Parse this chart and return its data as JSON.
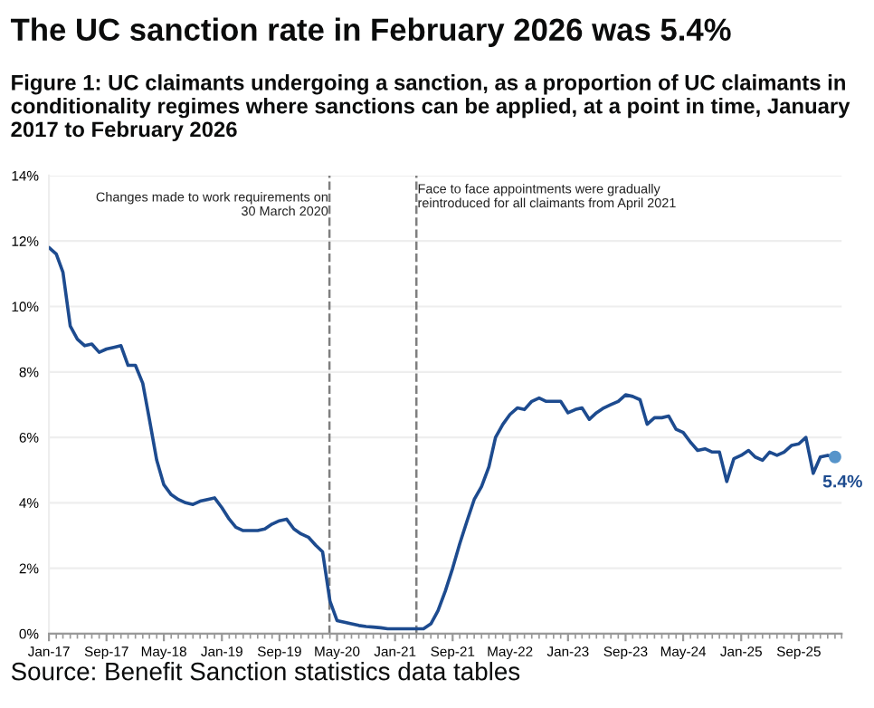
{
  "chart_data": {
    "type": "line",
    "title": "The UC sanction rate in February 2026 was 5.4%",
    "subtitle": "Figure 1: UC claimants undergoing a sanction, as a proportion of UC claimants in conditionality regimes where sanctions can be applied, at a point in time, January 2017 to February 2026",
    "x": [
      "2017-01",
      "2017-02",
      "2017-03",
      "2017-04",
      "2017-05",
      "2017-06",
      "2017-07",
      "2017-08",
      "2017-09",
      "2017-10",
      "2017-11",
      "2017-12",
      "2018-01",
      "2018-02",
      "2018-03",
      "2018-04",
      "2018-05",
      "2018-06",
      "2018-07",
      "2018-08",
      "2018-09",
      "2018-10",
      "2018-11",
      "2018-12",
      "2019-01",
      "2019-02",
      "2019-03",
      "2019-04",
      "2019-05",
      "2019-06",
      "2019-07",
      "2019-08",
      "2019-09",
      "2019-10",
      "2019-11",
      "2019-12",
      "2020-01",
      "2020-02",
      "2020-03",
      "2020-04",
      "2020-05",
      "2020-06",
      "2020-07",
      "2020-08",
      "2020-09",
      "2020-10",
      "2020-11",
      "2020-12",
      "2021-01",
      "2021-02",
      "2021-03",
      "2021-04",
      "2021-05",
      "2021-06",
      "2021-07",
      "2021-08",
      "2021-09",
      "2021-10",
      "2021-11",
      "2021-12",
      "2022-01",
      "2022-02",
      "2022-03",
      "2022-04",
      "2022-05",
      "2022-06",
      "2022-07",
      "2022-08",
      "2022-09",
      "2022-10",
      "2022-11",
      "2022-12",
      "2023-01",
      "2023-02",
      "2023-03",
      "2023-04",
      "2023-05",
      "2023-06",
      "2023-07",
      "2023-08",
      "2023-09",
      "2023-10",
      "2023-11",
      "2023-12",
      "2024-01",
      "2024-02",
      "2024-03",
      "2024-04",
      "2024-05",
      "2024-06",
      "2024-07",
      "2024-08",
      "2024-09",
      "2024-10",
      "2024-11",
      "2024-12",
      "2025-01",
      "2025-02",
      "2025-03",
      "2025-04",
      "2025-05",
      "2025-06",
      "2025-07",
      "2025-08",
      "2025-09",
      "2025-10",
      "2025-11",
      "2025-12",
      "2026-01",
      "2026-02"
    ],
    "series": [
      {
        "color": "#1d4b8f",
        "values": [
          11.8,
          11.6,
          11.05,
          9.4,
          9.0,
          8.8,
          8.85,
          8.6,
          8.7,
          8.75,
          8.8,
          8.2,
          8.2,
          7.65,
          6.55,
          5.3,
          4.55,
          4.25,
          4.1,
          4.0,
          3.95,
          4.05,
          4.1,
          4.15,
          3.85,
          3.5,
          3.25,
          3.15,
          3.15,
          3.15,
          3.2,
          3.35,
          3.45,
          3.5,
          3.2,
          3.05,
          2.95,
          2.7,
          2.5,
          1.0,
          0.4,
          0.35,
          0.3,
          0.25,
          0.22,
          0.2,
          0.18,
          0.15,
          0.15,
          0.15,
          0.15,
          0.15,
          0.15,
          0.3,
          0.7,
          1.3,
          2.0,
          2.75,
          3.45,
          4.1,
          4.5,
          5.1,
          6.0,
          6.4,
          6.7,
          6.9,
          6.85,
          7.1,
          7.2,
          7.1,
          7.1,
          7.1,
          6.75,
          6.85,
          6.9,
          6.55,
          6.75,
          6.9,
          7.0,
          7.1,
          7.3,
          7.25,
          7.15,
          6.4,
          6.6,
          6.6,
          6.65,
          6.25,
          6.15,
          5.85,
          5.6,
          5.65,
          5.55,
          5.55,
          4.65,
          5.35,
          5.45,
          5.6,
          5.4,
          5.3,
          5.55,
          5.45,
          5.55,
          5.75,
          5.8,
          6.0,
          4.9,
          5.4,
          5.45,
          5.4
        ]
      }
    ],
    "xlim": [
      "2017-01",
      "2026-03"
    ],
    "xticks": [
      {
        "value": "2017-01",
        "label": "Jan-17"
      },
      {
        "value": "2017-09",
        "label": "Sep-17"
      },
      {
        "value": "2018-05",
        "label": "May-18"
      },
      {
        "value": "2019-01",
        "label": "Jan-19"
      },
      {
        "value": "2019-09",
        "label": "Sep-19"
      },
      {
        "value": "2020-05",
        "label": "May-20"
      },
      {
        "value": "2021-01",
        "label": "Jan-21"
      },
      {
        "value": "2021-09",
        "label": "Sep-21"
      },
      {
        "value": "2022-05",
        "label": "May-22"
      },
      {
        "value": "2023-01",
        "label": "Jan-23"
      },
      {
        "value": "2023-09",
        "label": "Sep-23"
      },
      {
        "value": "2024-05",
        "label": "May-24"
      },
      {
        "value": "2025-01",
        "label": "Jan-25"
      },
      {
        "value": "2025-09",
        "label": "Sep-25"
      }
    ],
    "ylim": [
      0,
      14
    ],
    "yticks": [
      {
        "value": 0,
        "label": "0%"
      },
      {
        "value": 2,
        "label": "2%"
      },
      {
        "value": 4,
        "label": "4%"
      },
      {
        "value": 6,
        "label": "6%"
      },
      {
        "value": 8,
        "label": "8%"
      },
      {
        "value": 10,
        "label": "10%"
      },
      {
        "value": 12,
        "label": "12%"
      },
      {
        "value": 14,
        "label": "14%"
      }
    ],
    "grid": "y",
    "marker": "none",
    "line_style": "solid",
    "ref_lines": [
      {
        "axis": "x",
        "value": "2020-03-30",
        "label": "Changes made to work requirements on 30 March 2020",
        "color": "#7f7f7f",
        "line_style": "dashed"
      },
      {
        "axis": "x",
        "value": "2021-04-01",
        "label": "Face to face appointments were gradually reintroduced for all claimants from April 2021",
        "color": "#7f7f7f",
        "line_style": "dashed"
      }
    ],
    "annotations": [
      {
        "text": "5.4%",
        "x": "2026-02",
        "y": 5.4
      },
      "Source: Benefit Sanction statistics data tables"
    ]
  }
}
